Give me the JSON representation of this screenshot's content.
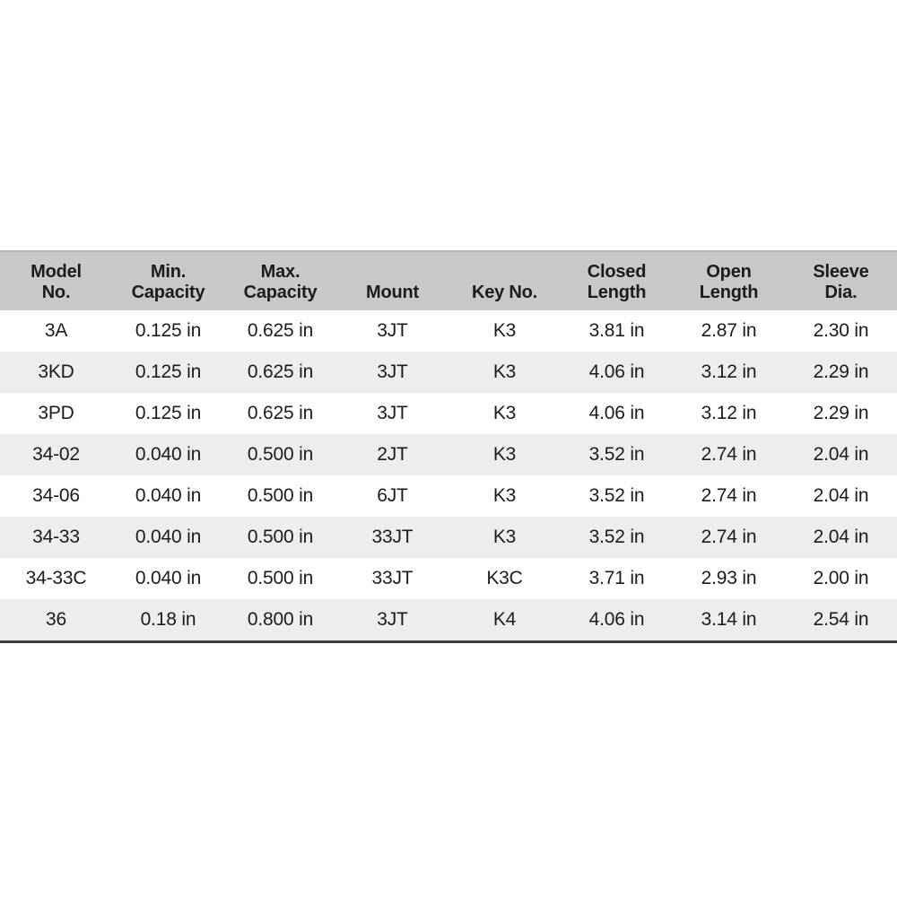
{
  "chart_data": {
    "type": "table",
    "title": "",
    "columns": [
      "Model No.",
      "Min. Capacity",
      "Max. Capacity",
      "Mount",
      "Key No.",
      "Closed Length",
      "Open Length",
      "Sleeve Dia."
    ],
    "rows": [
      [
        "3A",
        "0.125 in",
        "0.625 in",
        "3JT",
        "K3",
        "3.81 in",
        "2.87 in",
        "2.30 in"
      ],
      [
        "3KD",
        "0.125 in",
        "0.625 in",
        "3JT",
        "K3",
        "4.06 in",
        "3.12 in",
        "2.29 in"
      ],
      [
        "3PD",
        "0.125 in",
        "0.625 in",
        "3JT",
        "K3",
        "4.06 in",
        "3.12 in",
        "2.29 in"
      ],
      [
        "34-02",
        "0.040 in",
        "0.500 in",
        "2JT",
        "K3",
        "3.52 in",
        "2.74 in",
        "2.04 in"
      ],
      [
        "34-06",
        "0.040 in",
        "0.500 in",
        "6JT",
        "K3",
        "3.52 in",
        "2.74 in",
        "2.04 in"
      ],
      [
        "34-33",
        "0.040 in",
        "0.500 in",
        "33JT",
        "K3",
        "3.52 in",
        "2.74 in",
        "2.04 in"
      ],
      [
        "34-33C",
        "0.040 in",
        "0.500 in",
        "33JT",
        "K3C",
        "3.71 in",
        "2.93 in",
        "2.00 in"
      ],
      [
        "36",
        "0.18 in",
        "0.800 in",
        "3JT",
        "K4",
        "4.06 in",
        "3.14 in",
        "2.54 in"
      ]
    ]
  },
  "table": {
    "columns": [
      "Model\nNo.",
      "Min.\nCapacity",
      "Max.\nCapacity",
      "Mount",
      "Key No.",
      "Closed\nLength",
      "Open\nLength",
      "Sleeve\nDia."
    ],
    "rows": [
      [
        "3A",
        "0.125 in",
        "0.625 in",
        "3JT",
        "K3",
        "3.81 in",
        "2.87 in",
        "2.30 in"
      ],
      [
        "3KD",
        "0.125 in",
        "0.625 in",
        "3JT",
        "K3",
        "4.06 in",
        "3.12 in",
        "2.29 in"
      ],
      [
        "3PD",
        "0.125 in",
        "0.625 in",
        "3JT",
        "K3",
        "4.06 in",
        "3.12 in",
        "2.29 in"
      ],
      [
        "34-02",
        "0.040 in",
        "0.500 in",
        "2JT",
        "K3",
        "3.52 in",
        "2.74 in",
        "2.04 in"
      ],
      [
        "34-06",
        "0.040 in",
        "0.500 in",
        "6JT",
        "K3",
        "3.52 in",
        "2.74 in",
        "2.04 in"
      ],
      [
        "34-33",
        "0.040 in",
        "0.500 in",
        "33JT",
        "K3",
        "3.52 in",
        "2.74 in",
        "2.04 in"
      ],
      [
        "34-33C",
        "0.040 in",
        "0.500 in",
        "33JT",
        "K3C",
        "3.71 in",
        "2.93 in",
        "2.00 in"
      ],
      [
        "36",
        "0.18 in",
        "0.800 in",
        "3JT",
        "K4",
        "4.06 in",
        "3.14 in",
        "2.54 in"
      ]
    ],
    "colors": {
      "header_bg": "#c7c8c9",
      "top_border": "#b2b3b5",
      "row_bg": "#ffffff",
      "alt_row_bg": "#ededee",
      "bottom_border": "#3d3d3f",
      "text": "#1c1c1e"
    }
  }
}
